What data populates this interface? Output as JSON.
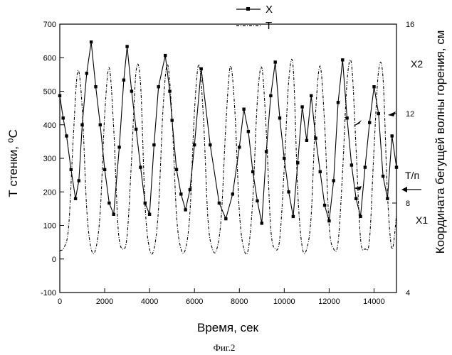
{
  "figure_caption": "Фиг.2",
  "chart_data": {
    "type": "line",
    "title": "",
    "xlabel": "Время, сек",
    "ylabel_left": "Т стенки, ⁰С",
    "ylabel_right": "Координата бегущей волны горения, см",
    "xlim": [
      0,
      15000
    ],
    "ylim_left": [
      -100,
      700
    ],
    "ylim_right": [
      4,
      16
    ],
    "x_ticks": [
      0,
      2000,
      4000,
      6000,
      8000,
      10000,
      12000,
      14000
    ],
    "y_ticks_left": [
      -100,
      0,
      100,
      200,
      300,
      400,
      500,
      600,
      700
    ],
    "y_ticks_right": [
      4,
      8,
      12,
      16
    ],
    "grid": false,
    "legend_position": "top-center",
    "annotations": [
      {
        "text": "Х2",
        "y_right": 14.2
      },
      {
        "text": "Т/п",
        "y_right": 10.0
      },
      {
        "text": "Х1",
        "y_right": 7.1
      }
    ],
    "series": [
      {
        "name": "Х",
        "axis": "right",
        "style": "solid-square-markers",
        "x": [
          0,
          150,
          300,
          500,
          700,
          850,
          1000,
          1200,
          1400,
          1600,
          1800,
          2000,
          2200,
          2400,
          2650,
          2850,
          3000,
          3200,
          3400,
          3600,
          3800,
          4000,
          4200,
          4400,
          4700,
          4900,
          5000,
          5200,
          5400,
          5600,
          5800,
          6000,
          6300,
          6700,
          7100,
          7400,
          7700,
          8000,
          8200,
          8400,
          8600,
          8800,
          9000,
          9200,
          9400,
          9600,
          9800,
          10000,
          10200,
          10400,
          10600,
          10800,
          11000,
          11200,
          11400,
          11600,
          11800,
          12000,
          12200,
          12400,
          12600,
          12800,
          13000,
          13200,
          13400,
          13600,
          13800,
          14000,
          14200,
          14400,
          14600,
          14800,
          15000
        ],
        "y": [
          12.8,
          11.8,
          11.0,
          9.5,
          8.2,
          9.0,
          11.5,
          13.8,
          15.2,
          13.2,
          11.5,
          9.5,
          8.0,
          7.5,
          10.5,
          13.5,
          15.0,
          13.0,
          11.3,
          9.6,
          8.0,
          7.5,
          10.6,
          13.2,
          14.6,
          13.0,
          11.7,
          9.5,
          8.4,
          7.7,
          8.6,
          10.6,
          14.0,
          10.6,
          8.0,
          7.3,
          8.4,
          10.5,
          12.2,
          11.2,
          9.4,
          8.1,
          7.1,
          10.3,
          12.8,
          14.3,
          11.8,
          10.0,
          8.5,
          7.4,
          9.8,
          12.3,
          10.8,
          12.8,
          10.9,
          9.4,
          7.9,
          7.2,
          9.0,
          12.5,
          14.4,
          11.8,
          9.7,
          8.2,
          7.4,
          9.6,
          11.6,
          13.2,
          12.0,
          9.2,
          8.2,
          11.0,
          9.6
        ]
      },
      {
        "name": "Т",
        "axis": "left",
        "style": "dash-dot",
        "x": [
          0,
          200,
          400,
          600,
          800,
          1000,
          1200,
          1400,
          1600,
          1800,
          2000,
          2200,
          2400,
          2600,
          2800,
          3000,
          3200,
          3400,
          3600,
          3800,
          4000,
          4200,
          4400,
          4600,
          4800,
          5000,
          5200,
          5400,
          5600,
          5800,
          6000,
          6200,
          6400,
          6600,
          6800,
          7000,
          7200,
          7400,
          7600,
          7800,
          8000,
          8200,
          8400,
          8600,
          8800,
          9000,
          9200,
          9400,
          9600,
          9800,
          10000,
          10200,
          10400,
          10600,
          10800,
          11000,
          11200,
          11400,
          11600,
          11800,
          12000,
          12200,
          12400,
          12600,
          12800,
          13000,
          13200,
          13400,
          13600,
          13800,
          14000,
          14200,
          14400,
          14600,
          14800,
          15000
        ],
        "y": [
          25,
          35,
          100,
          360,
          560,
          450,
          150,
          30,
          30,
          140,
          430,
          570,
          390,
          90,
          30,
          70,
          300,
          560,
          520,
          160,
          30,
          30,
          150,
          450,
          580,
          420,
          130,
          30,
          30,
          140,
          440,
          580,
          420,
          120,
          30,
          30,
          130,
          400,
          575,
          440,
          140,
          30,
          30,
          180,
          470,
          570,
          380,
          90,
          30,
          60,
          270,
          530,
          570,
          200,
          35,
          30,
          130,
          440,
          575,
          400,
          100,
          30,
          50,
          260,
          530,
          580,
          330,
          60,
          30,
          60,
          330,
          560,
          540,
          190,
          30,
          130
        ]
      }
    ]
  }
}
